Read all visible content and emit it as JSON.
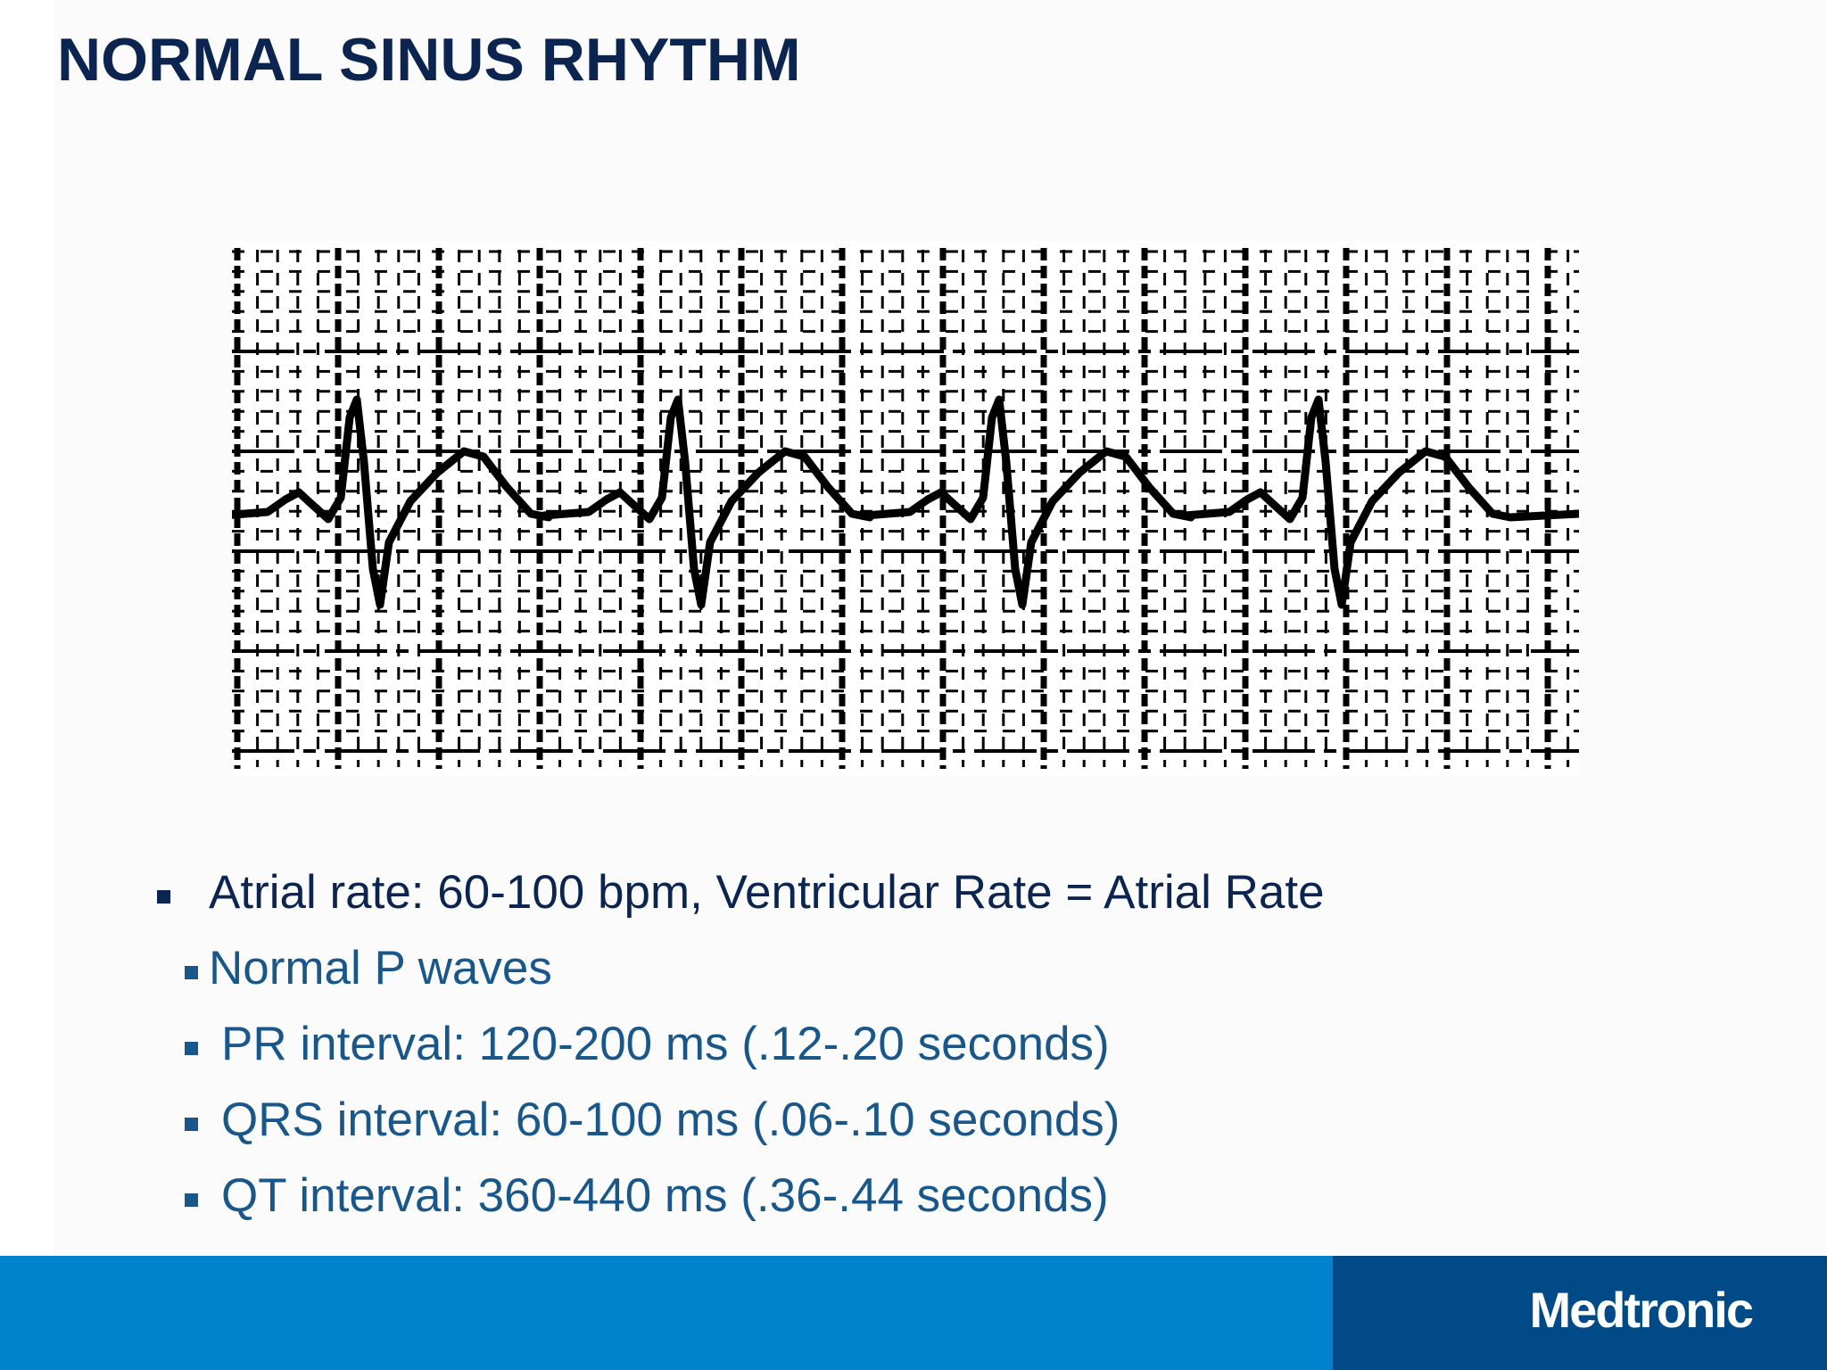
{
  "slide": {
    "title": "NORMAL SINUS RHYTHM"
  },
  "ecg": {
    "trace_color": "#000000",
    "grid_color": "#000000"
  },
  "bullets": [
    "Atrial rate:  60-100 bpm, Ventricular Rate = Atrial Rate",
    "Normal P waves",
    "PR interval:  120-200 ms (.12-.20 seconds)",
    "QRS interval:  60-100 ms (.06-.10 seconds)",
    "QT interval:  360-440 ms (.36-.44 seconds)"
  ],
  "footer": {
    "logo_text": "Medtronic",
    "bar_color": "#0083cc",
    "brand_color": "#004b87"
  },
  "colors": {
    "title": "#0b2550",
    "bullet_primary": "#0b2550",
    "bullet_secondary": "#19578a"
  }
}
